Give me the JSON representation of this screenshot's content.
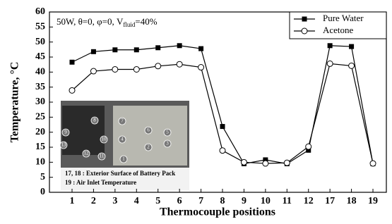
{
  "chart_data": {
    "type": "line",
    "annotation": [
      "50W, θ=0, φ=0, V",
      "fluid",
      "=40%"
    ],
    "x_label": "Thermocouple positions",
    "y_label": "Temperature, °C",
    "categories": [
      "1",
      "2",
      "3",
      "4",
      "5",
      "6",
      "7",
      "8",
      "9",
      "10",
      "11",
      "12",
      "17",
      "18",
      "19"
    ],
    "series": [
      {
        "name": "Pure Water",
        "color": "#000000",
        "marker": "square",
        "values": [
          43.3,
          46.8,
          47.4,
          47.4,
          48.1,
          48.8,
          47.8,
          21.9,
          9.5,
          10.8,
          9.5,
          14.0,
          48.8,
          48.5,
          9.5
        ]
      },
      {
        "name": "Acetone",
        "color": "#000000",
        "marker": "circle",
        "values": [
          33.9,
          40.3,
          40.9,
          40.9,
          42.0,
          42.6,
          41.6,
          13.9,
          10.0,
          9.6,
          9.8,
          15.2,
          42.8,
          42.1,
          9.6
        ]
      }
    ],
    "ylim": [
      0,
      60
    ],
    "yticks": [
      0,
      5,
      10,
      15,
      20,
      25,
      30,
      35,
      40,
      45,
      50,
      55,
      60
    ],
    "grid": false,
    "legend": "upper right",
    "inset": {
      "labels": [
        "13",
        "9",
        "8",
        "10",
        "11",
        "12",
        "7",
        "6",
        "5",
        "4",
        "3",
        "2",
        "1"
      ],
      "captions": [
        "17, 18 : Exterior Surface of Battery Pack",
        "19 : Air Inlet Temperature"
      ]
    }
  }
}
